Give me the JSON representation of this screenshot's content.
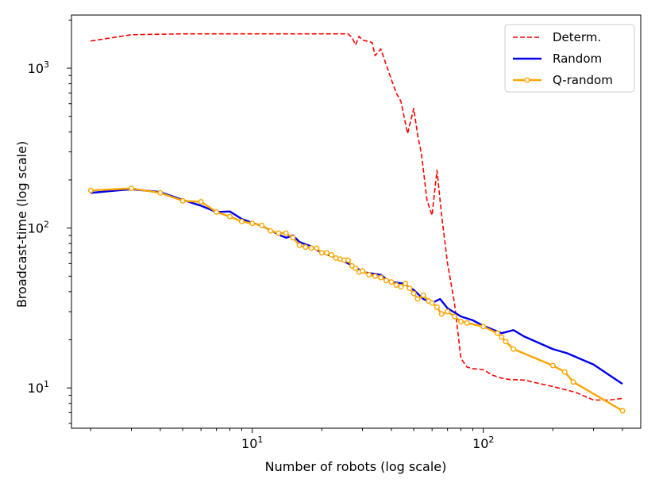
{
  "chart_data": {
    "type": "line",
    "title": "",
    "xlabel": "Number of robots (log scale)",
    "ylabel": "Broadcast-time (log scale)",
    "xscale": "log",
    "yscale": "log",
    "xlim": [
      1.65,
      480
    ],
    "ylim": [
      5.6,
      2150
    ],
    "grid": false,
    "legend_position": "top-right",
    "xticks": [
      {
        "value": 10,
        "base": "10",
        "exp": "1"
      },
      {
        "value": 100,
        "base": "10",
        "exp": "2"
      }
    ],
    "yticks": [
      {
        "value": 10,
        "base": "10",
        "exp": "1"
      },
      {
        "value": 100,
        "base": "10",
        "exp": "2"
      },
      {
        "value": 1000,
        "base": "10",
        "exp": "3"
      }
    ],
    "series": [
      {
        "name": "Determ.",
        "color": "#ff0000",
        "style": "dashed",
        "marker": "none",
        "x": [
          2,
          3,
          5,
          10,
          20,
          26,
          27,
          28,
          29,
          30,
          33,
          34,
          36,
          38,
          40,
          42,
          44,
          47,
          50,
          52,
          54,
          57,
          60,
          63,
          66,
          70,
          75,
          80,
          85,
          90,
          100,
          110,
          120,
          130,
          150,
          200,
          250,
          300,
          350,
          400
        ],
        "y": [
          1480,
          1620,
          1640,
          1640,
          1640,
          1640,
          1560,
          1400,
          1580,
          1500,
          1450,
          1200,
          1320,
          1050,
          850,
          700,
          620,
          390,
          560,
          380,
          290,
          150,
          120,
          230,
          120,
          60,
          34,
          15.3,
          13.5,
          13.2,
          13,
          12,
          11.5,
          11.3,
          11.2,
          10.2,
          9.4,
          8.4,
          8.4,
          8.6
        ]
      },
      {
        "name": "Random",
        "color": "#0000ee",
        "style": "solid",
        "marker": "none",
        "x": [
          2,
          3,
          4,
          5,
          6,
          7,
          8,
          9,
          10,
          11,
          12,
          13,
          14,
          15,
          16,
          17,
          18,
          19,
          20,
          22,
          24,
          26,
          28,
          30,
          33,
          36,
          38,
          40,
          45,
          50,
          55,
          60,
          65,
          70,
          80,
          90,
          100,
          120,
          135,
          150,
          200,
          230,
          300,
          400
        ],
        "y": [
          166,
          175,
          168,
          150,
          138,
          126,
          127,
          114,
          108,
          103,
          97,
          91,
          87,
          90,
          82,
          79,
          77,
          73,
          70,
          67,
          64,
          60,
          57,
          53,
          52,
          51,
          48,
          46,
          45,
          41,
          36,
          34,
          36,
          31.5,
          28,
          26.5,
          24.5,
          22,
          23,
          21,
          17.5,
          16.5,
          14,
          10.6
        ]
      },
      {
        "name": "Q-random",
        "color": "#ffa500",
        "style": "solid",
        "marker": "o",
        "x": [
          2,
          3,
          4,
          5,
          6,
          7,
          8,
          9,
          10,
          11,
          12,
          13,
          14,
          15,
          16,
          17,
          18,
          19,
          20,
          21,
          22,
          23,
          24,
          25,
          26,
          27,
          28,
          29,
          30,
          32,
          34,
          36,
          38,
          40,
          42,
          44,
          46,
          48,
          50,
          52,
          55,
          58,
          60,
          63,
          66,
          70,
          75,
          80,
          85,
          100,
          115,
          120,
          125,
          135,
          200,
          225,
          245,
          400
        ],
        "y": [
          172,
          177,
          166,
          148,
          146,
          126,
          118,
          110,
          107,
          104,
          96,
          93,
          93,
          87,
          78,
          76,
          75,
          75,
          70,
          70,
          68,
          65,
          64,
          63,
          63,
          58,
          56,
          53,
          54,
          51,
          50,
          49,
          47,
          46,
          44,
          43,
          45,
          42,
          39,
          36,
          38,
          35,
          34,
          32,
          29,
          30,
          28,
          26,
          25.5,
          24.2,
          22,
          20.8,
          19.5,
          17.5,
          13.8,
          12.6,
          10.9,
          7.2
        ]
      }
    ]
  }
}
